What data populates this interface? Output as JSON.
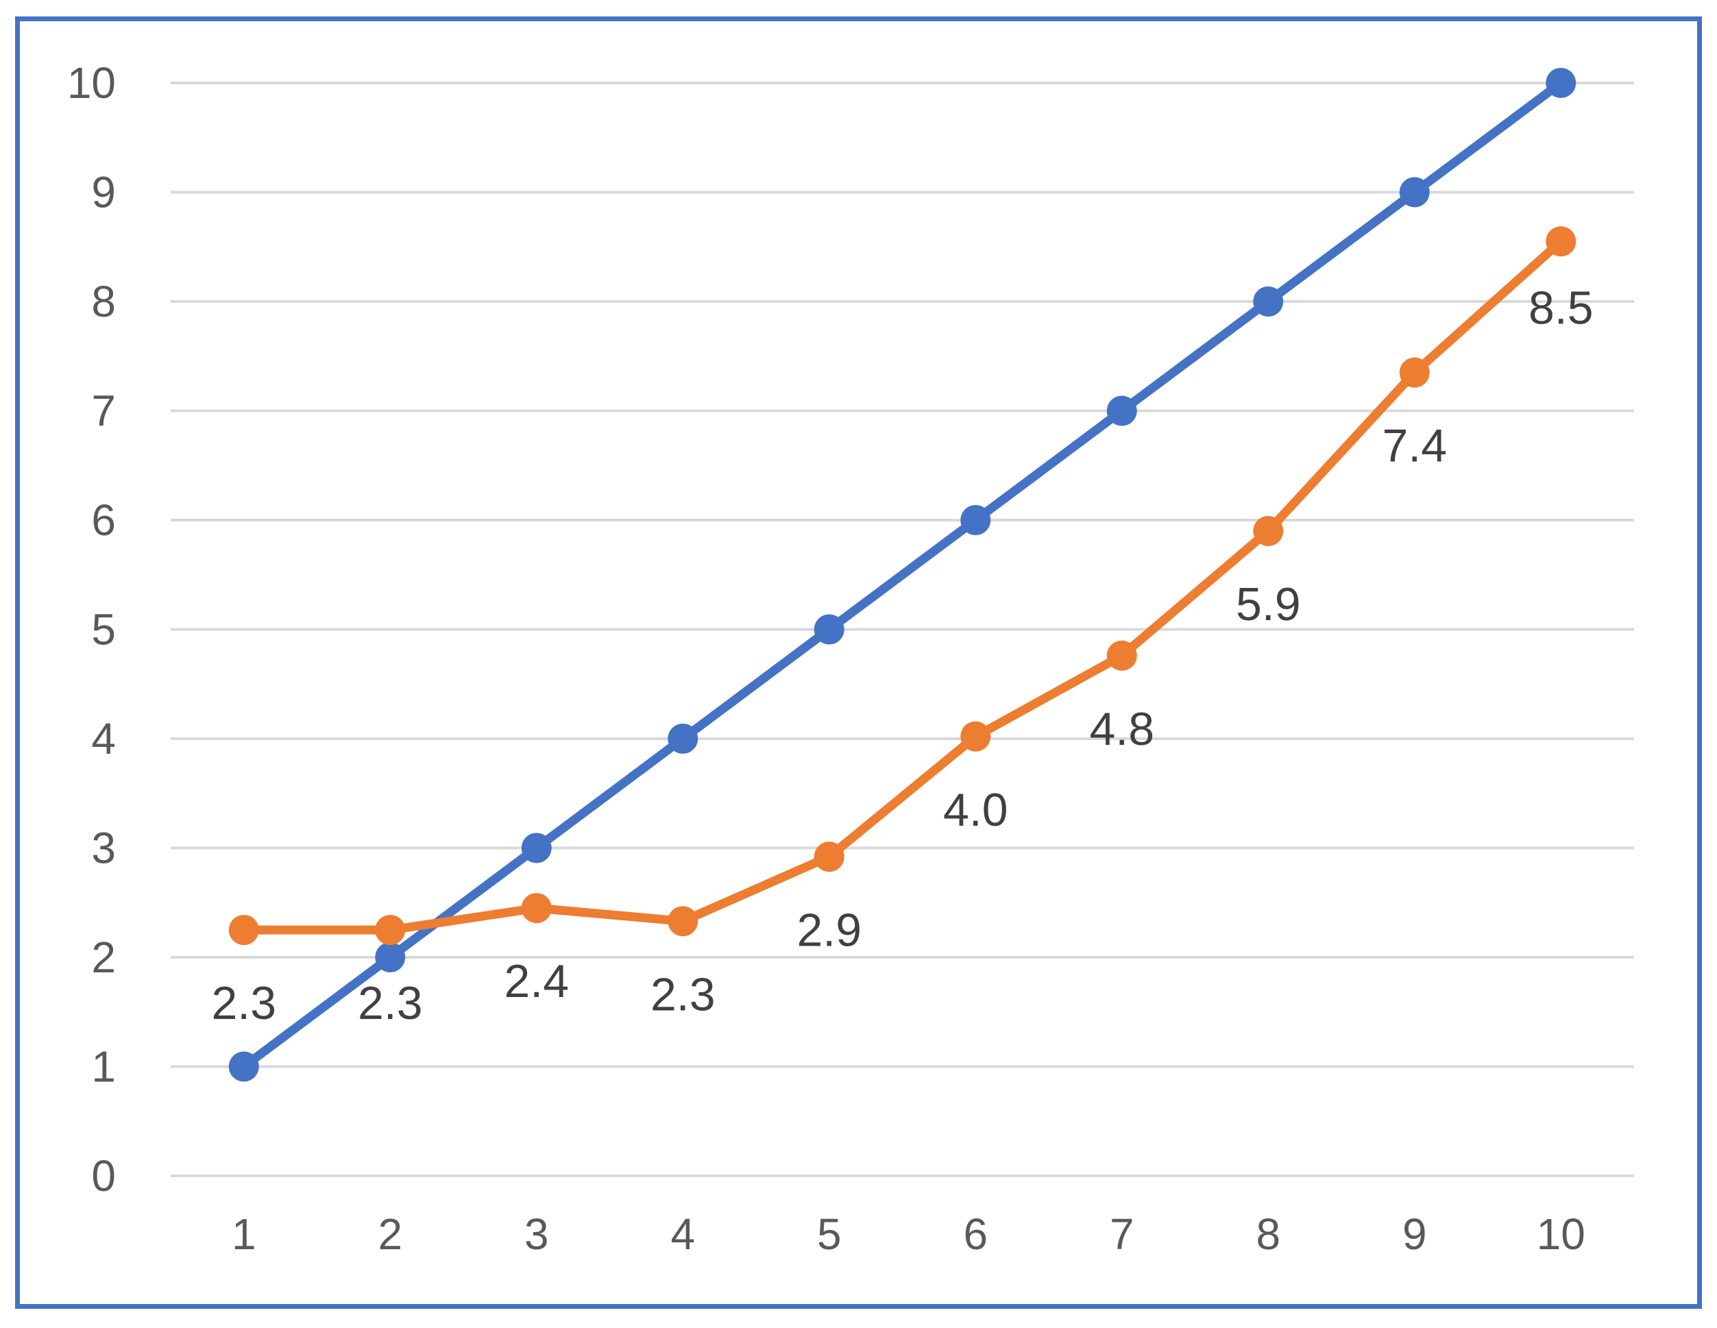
{
  "chart_data": {
    "type": "line",
    "x": [
      1,
      2,
      3,
      4,
      5,
      6,
      7,
      8,
      9,
      10
    ],
    "ylim": [
      0,
      10
    ],
    "y_ticks": [
      0,
      1,
      2,
      3,
      4,
      5,
      6,
      7,
      8,
      9,
      10
    ],
    "x_tick_labels": [
      "1",
      "2",
      "3",
      "4",
      "5",
      "6",
      "7",
      "8",
      "9",
      "10"
    ],
    "y_tick_labels": [
      "0",
      "1",
      "2",
      "3",
      "4",
      "5",
      "6",
      "7",
      "8",
      "9",
      "10"
    ],
    "grid": "horizontal",
    "legend": "none",
    "title": "",
    "xlabel": "",
    "ylabel": "",
    "series": [
      {
        "values": [
          1,
          2,
          3,
          4,
          5,
          6,
          7,
          8,
          9,
          10
        ],
        "color": "#4472c4",
        "data_labels": []
      },
      {
        "values": [
          2.25,
          2.25,
          2.45,
          2.33,
          2.92,
          4.02,
          4.76,
          5.9,
          7.35,
          8.55
        ],
        "color": "#ed7d31",
        "data_labels": [
          "2.3",
          "2.3",
          "2.4",
          "2.3",
          "2.9",
          "4.0",
          "4.8",
          "5.9",
          "7.4",
          "8.5"
        ]
      }
    ]
  },
  "colors": {
    "frame_border": "#4472c4",
    "gridline": "#d9d9d9",
    "tick_text": "#595959",
    "data_label_text": "#404040"
  }
}
